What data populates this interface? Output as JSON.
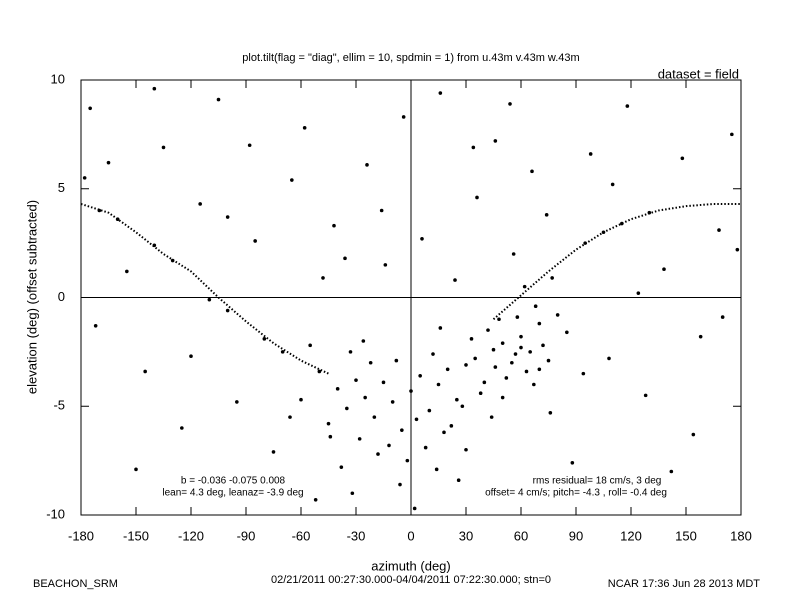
{
  "chart_data": {
    "type": "scatter",
    "title": "plot.tilt(flag = \"diag\", ellim = 10, spdmin = 1) from u.43m v.43m w.43m",
    "subtitle": "dataset = field",
    "xlabel": "azimuth (deg)",
    "ylabel": "elevation (deg)  (offset subtracted)",
    "notes": [
      "b = -0.036 -0.075  0.008",
      "lean= 4.3 deg, leanaz= -3.9 deg",
      "rms residual= 18 cm/s, 3 deg",
      "offset= 4 cm/s; pitch= -4.3 , roll= -0.4 deg",
      "BEACHON_SRM",
      "02/21/2011 00:27:30.000-04/04/2011 07:22:30.000; stn=0",
      "NCAR 17:36 Jun 28 2013 MDT"
    ],
    "xlim": [
      -180,
      180
    ],
    "ylim": [
      -10,
      10
    ],
    "xticks": [
      -180,
      -150,
      -120,
      -90,
      -60,
      -30,
      0,
      30,
      60,
      90,
      120,
      150,
      180
    ],
    "yticks": [
      -10,
      -5,
      0,
      5,
      10
    ],
    "series": [
      {
        "color": "#000000",
        "mode": "points",
        "x": [
          -40,
          -35,
          -30,
          -25,
          -20,
          -15,
          -10,
          -5,
          0,
          5,
          10,
          15,
          20,
          25,
          30,
          35,
          40,
          45,
          50,
          55,
          60,
          65,
          70,
          75,
          80,
          -50,
          -45,
          -28,
          -18,
          -8,
          3,
          12,
          22,
          33,
          42,
          52,
          58,
          63,
          68,
          72,
          -33,
          -22,
          -12,
          -2,
          8,
          18,
          28,
          38,
          48,
          57,
          62,
          67,
          -55,
          -60,
          -38,
          -6,
          14,
          44,
          77,
          85,
          -170,
          -160,
          -140,
          -130,
          -110,
          -100,
          -80,
          -70,
          95,
          105,
          115,
          130,
          -175,
          -165,
          -155,
          -145,
          -135,
          -125,
          -115,
          -105,
          -95,
          -85,
          -75,
          -65,
          -58,
          -48,
          -42,
          -32,
          -24,
          -14,
          -4,
          6,
          16,
          26,
          36,
          46,
          56,
          66,
          76,
          88,
          98,
          108,
          118,
          128,
          138,
          148,
          158,
          168,
          175,
          -172,
          -150,
          -120,
          -88,
          -52,
          -16,
          24,
          54,
          94,
          124,
          154,
          178,
          -178,
          -140,
          -100,
          -66,
          -36,
          2,
          34,
          74,
          110,
          142,
          170,
          -26,
          -44,
          16,
          30,
          46,
          50,
          60,
          70
        ],
        "values": [
          -4.2,
          -5.1,
          -3.8,
          -4.6,
          -5.5,
          -3.9,
          -4.8,
          -6.1,
          -4.3,
          -3.6,
          -5.2,
          -4.0,
          -3.3,
          -4.7,
          -3.1,
          -2.8,
          -3.9,
          -2.4,
          -2.1,
          -3.0,
          -1.8,
          -2.5,
          -1.2,
          -2.9,
          -0.8,
          -3.4,
          -5.8,
          -6.5,
          -7.2,
          -2.9,
          -5.6,
          -2.6,
          -5.9,
          -1.9,
          -1.5,
          -3.7,
          -0.9,
          -3.4,
          -0.4,
          -2.2,
          -2.5,
          -3.0,
          -6.8,
          -7.5,
          -6.9,
          -6.2,
          -5.0,
          -4.4,
          -1.0,
          -2.6,
          0.5,
          -4.0,
          -2.2,
          -4.7,
          -7.8,
          -8.6,
          -7.9,
          -5.5,
          0.9,
          -1.6,
          4.0,
          3.6,
          2.4,
          1.7,
          -0.1,
          -0.6,
          -1.9,
          -2.5,
          2.5,
          3.0,
          3.4,
          3.9,
          8.7,
          6.2,
          1.2,
          -3.4,
          6.9,
          -6.0,
          4.3,
          9.1,
          -4.8,
          2.6,
          -7.1,
          5.4,
          7.8,
          0.9,
          3.3,
          -9.0,
          6.1,
          1.5,
          8.3,
          2.7,
          9.4,
          -8.4,
          4.6,
          7.2,
          2.0,
          5.8,
          -5.3,
          -7.6,
          6.6,
          -2.8,
          8.8,
          -4.5,
          1.3,
          6.4,
          -1.8,
          3.1,
          7.5,
          -1.3,
          -7.9,
          -2.7,
          7.0,
          -9.3,
          4.0,
          0.8,
          8.9,
          -3.5,
          0.2,
          -6.3,
          2.2,
          5.5,
          9.6,
          3.7,
          -5.5,
          1.8,
          -9.7,
          6.9,
          3.8,
          5.2,
          -8.0,
          -0.9,
          -2.0,
          -6.4,
          -1.4,
          -7.0,
          -3.2,
          -4.6,
          -2.3,
          -3.3
        ]
      },
      {
        "color": "#000000",
        "mode": "dotted-line",
        "x": [
          -180,
          -165,
          -150,
          -135,
          -120,
          -105,
          -90,
          -75,
          -60,
          -45,
          0,
          45,
          60,
          75,
          90,
          105,
          120,
          135,
          150,
          165,
          180
        ],
        "values": [
          4.3,
          3.9,
          3.0,
          2.0,
          1.2,
          0.0,
          -1.1,
          -2.1,
          -2.9,
          -3.5,
          null,
          -1.0,
          0.1,
          1.2,
          2.2,
          3.0,
          3.6,
          4.0,
          4.2,
          4.3,
          4.3
        ]
      }
    ]
  }
}
